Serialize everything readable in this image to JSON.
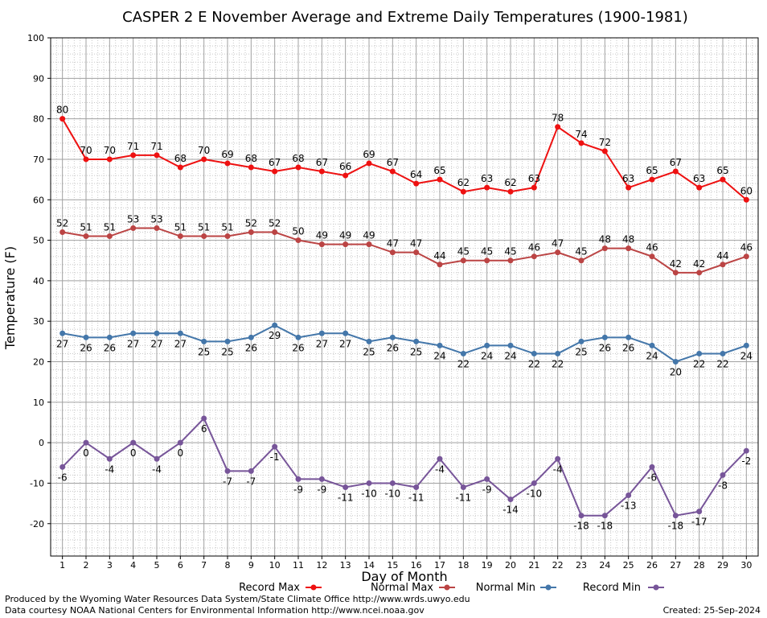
{
  "chart_data": {
    "type": "line",
    "title": "CASPER 2 E November Average and Extreme Daily Temperatures (1900-1981)",
    "xlabel": "Day of Month",
    "ylabel": "Temperature (F)",
    "ylim": [
      -28,
      100
    ],
    "yticks": [
      -20,
      -10,
      0,
      10,
      20,
      30,
      40,
      50,
      60,
      70,
      80,
      90,
      100
    ],
    "grid": true,
    "legend_position": "bottom",
    "x": [
      1,
      2,
      3,
      4,
      5,
      6,
      7,
      8,
      9,
      10,
      11,
      12,
      13,
      14,
      15,
      16,
      17,
      18,
      19,
      20,
      21,
      22,
      23,
      24,
      25,
      26,
      27,
      28,
      29,
      30
    ],
    "series": [
      {
        "name": "Record Max",
        "color": "#ee1111",
        "values": [
          80,
          70,
          70,
          71,
          71,
          68,
          70,
          69,
          68,
          67,
          68,
          67,
          66,
          69,
          67,
          64,
          65,
          62,
          63,
          62,
          63,
          78,
          74,
          72,
          63,
          65,
          67,
          63,
          65,
          60
        ]
      },
      {
        "name": "Normal Max",
        "color": "#bb4444",
        "values": [
          52,
          51,
          51,
          53,
          53,
          51,
          51,
          51,
          52,
          52,
          50,
          49,
          49,
          49,
          47,
          47,
          44,
          45,
          45,
          45,
          46,
          47,
          45,
          48,
          48,
          46,
          42,
          42,
          44,
          46
        ]
      },
      {
        "name": "Normal Min",
        "color": "#4477aa",
        "values": [
          27,
          26,
          26,
          27,
          27,
          27,
          25,
          25,
          26,
          29,
          26,
          27,
          27,
          25,
          26,
          25,
          24,
          22,
          24,
          24,
          22,
          22,
          25,
          26,
          26,
          24,
          20,
          22,
          22,
          24
        ]
      },
      {
        "name": "Record Min",
        "color": "#775599",
        "values": [
          -6,
          0,
          -4,
          0,
          -4,
          0,
          6,
          -7,
          -7,
          -1,
          -9,
          -9,
          -11,
          -10,
          -10,
          -11,
          -4,
          -11,
          -9,
          -14,
          -10,
          -4,
          -18,
          -18,
          -13,
          -6,
          -18,
          -17,
          -8,
          -2
        ]
      }
    ]
  },
  "footer": {
    "left_line1": "Produced by the Wyoming Water Resources Data System/State Climate Office http://www.wrds.uwyo.edu",
    "left_line2": "Data courtesy NOAA National Centers for Environmental Information http://www.ncei.noaa.gov",
    "created": "Created: 25-Sep-2024"
  }
}
